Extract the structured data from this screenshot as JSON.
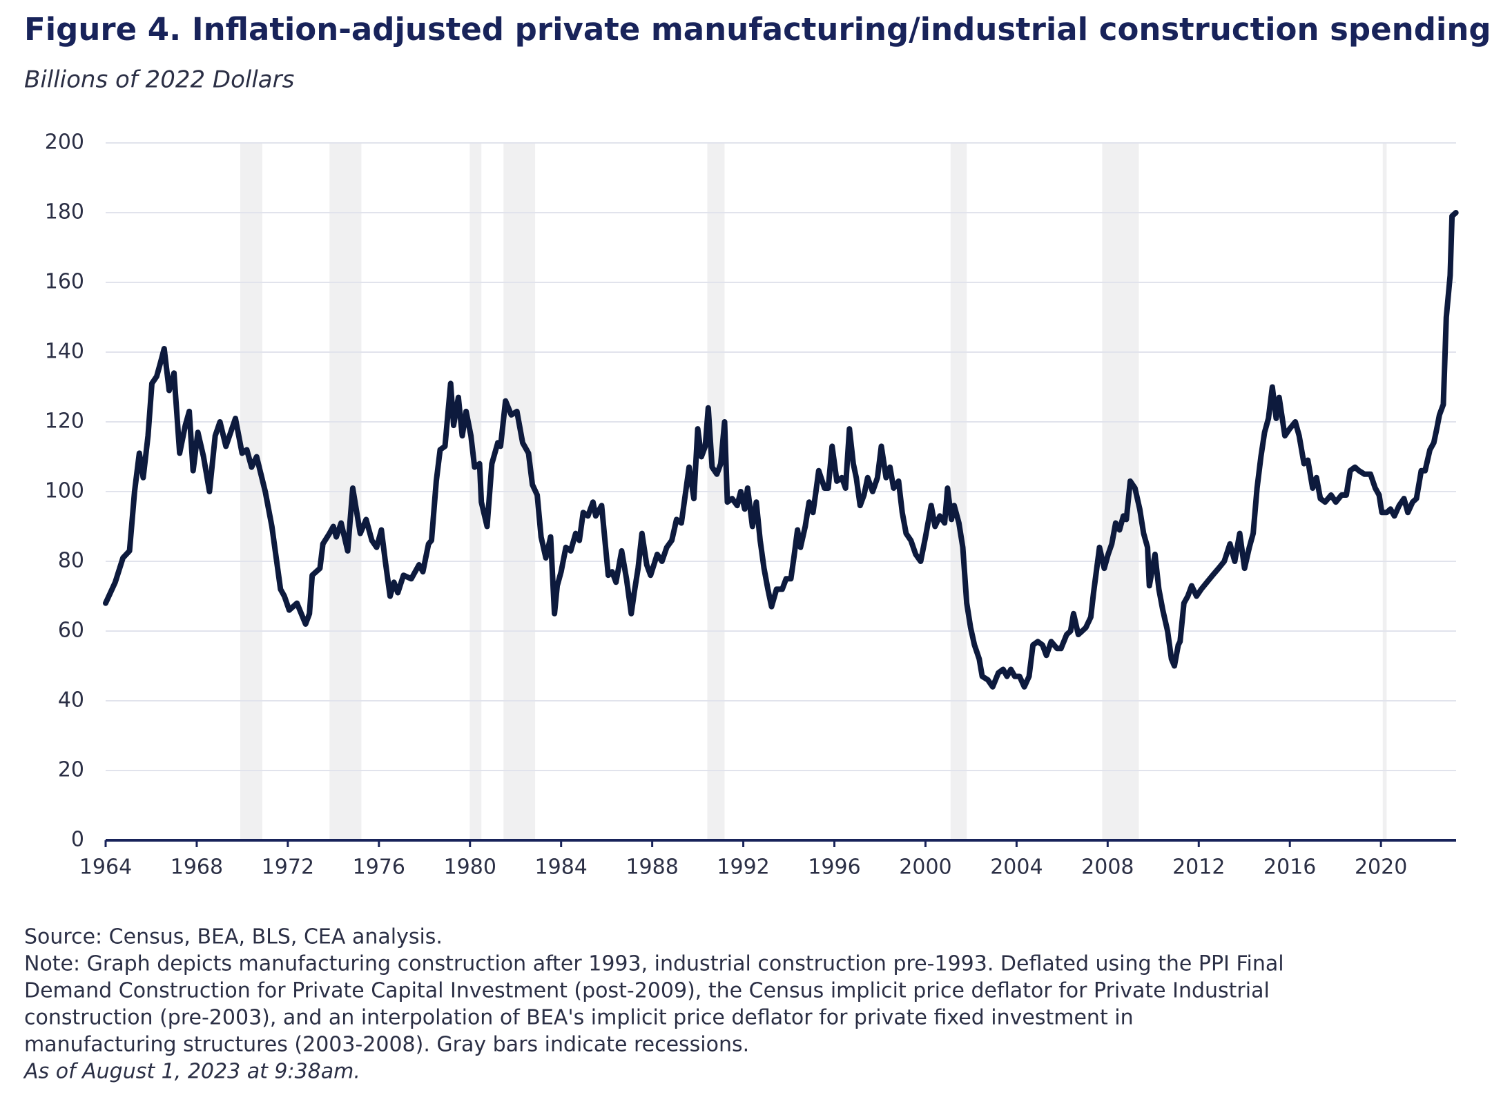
{
  "chart_data": {
    "type": "line",
    "title": "Figure 4. Inflation-adjusted private manufacturing/industrial construction spending",
    "subtitle": "Billions of 2022 Dollars",
    "x": [
      1964.0,
      1964.42,
      1964.76,
      1965.05,
      1965.27,
      1965.48,
      1965.65,
      1965.86,
      1966.03,
      1966.24,
      1966.41,
      1966.57,
      1966.79,
      1967.0,
      1967.25,
      1967.5,
      1967.67,
      1967.84,
      1968.05,
      1968.3,
      1968.56,
      1968.81,
      1969.02,
      1969.28,
      1969.7,
      1969.99,
      1970.2,
      1970.41,
      1970.63,
      1971.01,
      1971.3,
      1971.68,
      1971.85,
      1972.06,
      1972.4,
      1972.78,
      1972.95,
      1973.07,
      1973.41,
      1973.54,
      1973.83,
      1974.0,
      1974.13,
      1974.34,
      1974.63,
      1974.85,
      1975.18,
      1975.44,
      1975.69,
      1975.9,
      1976.11,
      1976.28,
      1976.49,
      1976.66,
      1976.83,
      1977.08,
      1977.42,
      1977.76,
      1977.93,
      1978.18,
      1978.31,
      1978.52,
      1978.69,
      1978.9,
      1979.15,
      1979.28,
      1979.49,
      1979.66,
      1979.83,
      1980.04,
      1980.2,
      1980.42,
      1980.5,
      1980.75,
      1980.96,
      1981.22,
      1981.34,
      1981.56,
      1981.81,
      1982.06,
      1982.31,
      1982.57,
      1982.74,
      1982.95,
      1983.12,
      1983.33,
      1983.54,
      1983.71,
      1983.83,
      1984.0,
      1984.21,
      1984.42,
      1984.64,
      1984.8,
      1984.97,
      1985.18,
      1985.4,
      1985.52,
      1985.78,
      1986.07,
      1986.24,
      1986.41,
      1986.66,
      1986.87,
      1987.08,
      1987.21,
      1987.38,
      1987.55,
      1987.76,
      1987.93,
      1988.22,
      1988.43,
      1988.64,
      1988.86,
      1989.07,
      1989.28,
      1989.45,
      1989.62,
      1989.83,
      1990.0,
      1990.16,
      1990.33,
      1990.46,
      1990.63,
      1990.84,
      1991.01,
      1991.18,
      1991.3,
      1991.51,
      1991.73,
      1991.89,
      1992.06,
      1992.19,
      1992.4,
      1992.57,
      1992.74,
      1992.91,
      1993.08,
      1993.24,
      1993.46,
      1993.71,
      1993.88,
      1994.09,
      1994.22,
      1994.38,
      1994.51,
      1994.72,
      1994.89,
      1995.06,
      1995.19,
      1995.31,
      1995.57,
      1995.73,
      1995.9,
      1996.11,
      1996.33,
      1996.49,
      1996.66,
      1996.83,
      1996.96,
      1997.13,
      1997.3,
      1997.46,
      1997.68,
      1997.89,
      1998.06,
      1998.27,
      1998.44,
      1998.6,
      1998.82,
      1998.98,
      1999.15,
      1999.36,
      1999.57,
      1999.79,
      2000.0,
      2000.25,
      2000.42,
      2000.63,
      2000.84,
      2000.97,
      2001.14,
      2001.26,
      2001.47,
      2001.64,
      2001.81,
      2001.98,
      2002.15,
      2002.36,
      2002.49,
      2002.74,
      2002.95,
      2003.2,
      2003.41,
      2003.58,
      2003.75,
      2003.92,
      2004.13,
      2004.34,
      2004.55,
      2004.72,
      2004.93,
      2005.14,
      2005.31,
      2005.52,
      2005.78,
      2005.95,
      2006.2,
      2006.37,
      2006.5,
      2006.71,
      2006.88,
      2007.04,
      2007.26,
      2007.38,
      2007.64,
      2007.85,
      2008.02,
      2008.18,
      2008.35,
      2008.52,
      2008.69,
      2008.82,
      2008.99,
      2009.2,
      2009.41,
      2009.58,
      2009.75,
      2009.83,
      2010.08,
      2010.25,
      2010.42,
      2010.63,
      2010.8,
      2010.93,
      2011.1,
      2011.18,
      2011.35,
      2011.52,
      2011.69,
      2011.9,
      2012.11,
      2012.36,
      2012.61,
      2012.87,
      2013.12,
      2013.37,
      2013.58,
      2013.8,
      2014.01,
      2014.22,
      2014.39,
      2014.56,
      2014.73,
      2014.89,
      2015.06,
      2015.23,
      2015.4,
      2015.53,
      2015.78,
      2015.99,
      2016.24,
      2016.41,
      2016.62,
      2016.79,
      2017.0,
      2017.17,
      2017.34,
      2017.55,
      2017.81,
      2018.02,
      2018.27,
      2018.48,
      2018.65,
      2018.86,
      2019.03,
      2019.28,
      2019.54,
      2019.75,
      2019.92,
      2020.04,
      2020.25,
      2020.42,
      2020.59,
      2020.8,
      2021.01,
      2021.18,
      2021.39,
      2021.56,
      2021.77,
      2021.94,
      2022.15,
      2022.32,
      2022.45,
      2022.57,
      2022.74,
      2022.87,
      2023.04,
      2023.12,
      2023.29
    ],
    "values": [
      68,
      74,
      81,
      83,
      100,
      111,
      104,
      116,
      131,
      133,
      137,
      141,
      129,
      134,
      111,
      119,
      123,
      106,
      117,
      110,
      100,
      116,
      120,
      113,
      121,
      111,
      112,
      107,
      110,
      100,
      90,
      72,
      70,
      66,
      68,
      62,
      65,
      76,
      78,
      85,
      88,
      90,
      87,
      91,
      83,
      101,
      88,
      92,
      86,
      84,
      89,
      80,
      70,
      74,
      71,
      76,
      75,
      79,
      77,
      85,
      86,
      103,
      112,
      113,
      131,
      119,
      127,
      116,
      123,
      116,
      107,
      108,
      97,
      90,
      108,
      114,
      113,
      126,
      122,
      123,
      114,
      111,
      102,
      99,
      87,
      81,
      87,
      65,
      73,
      77,
      84,
      83,
      88,
      86,
      94,
      93,
      97,
      93,
      96,
      76,
      77,
      74,
      83,
      75,
      65,
      71,
      78,
      88,
      79,
      76,
      82,
      80,
      84,
      86,
      92,
      91,
      99,
      107,
      98,
      118,
      110,
      113,
      124,
      107,
      105,
      108,
      120,
      97,
      98,
      96,
      100,
      95,
      101,
      90,
      97,
      86,
      78,
      72,
      67,
      72,
      72,
      75,
      75,
      81,
      89,
      84,
      90,
      97,
      94,
      100,
      106,
      101,
      101,
      113,
      103,
      104,
      101,
      118,
      108,
      104,
      96,
      99,
      104,
      100,
      104,
      113,
      104,
      107,
      101,
      103,
      94,
      88,
      86,
      82,
      80,
      87,
      96,
      90,
      93,
      91,
      101,
      92,
      96,
      91,
      84,
      68,
      61,
      56,
      52,
      47,
      46,
      44,
      48,
      49,
      47,
      49,
      47,
      47,
      44,
      47,
      56,
      57,
      56,
      53,
      57,
      55,
      55,
      59,
      60,
      65,
      59,
      60,
      61,
      64,
      71,
      84,
      78,
      82,
      85,
      91,
      89,
      93,
      92,
      103,
      101,
      95,
      88,
      84,
      73,
      82,
      72,
      66,
      60,
      52,
      50,
      56,
      57,
      68,
      70,
      73,
      70,
      72,
      74,
      76,
      78,
      80,
      85,
      80,
      88,
      78,
      84,
      88,
      101,
      110,
      117,
      121,
      130,
      121,
      127,
      116,
      118,
      120,
      116,
      108,
      109,
      101,
      104,
      98,
      97,
      99,
      97,
      99,
      99,
      106,
      107,
      106,
      105,
      105,
      101,
      99,
      94,
      94,
      95,
      93,
      96,
      98,
      94,
      97,
      98,
      106,
      106,
      112,
      114,
      118,
      122,
      125,
      150,
      162,
      179,
      180
    ],
    "color": "#0d1a3d",
    "xlim": [
      1964,
      2023.3
    ],
    "xticks": [
      1964,
      1968,
      1972,
      1976,
      1980,
      1984,
      1988,
      1992,
      1996,
      2000,
      2004,
      2008,
      2012,
      2016,
      2020
    ],
    "ylim": [
      0,
      200
    ],
    "yticks": [
      0,
      20,
      40,
      60,
      80,
      100,
      120,
      140,
      160,
      180,
      200
    ],
    "grid": true,
    "recessions": [
      [
        1969.91,
        1970.88
      ],
      [
        1973.83,
        1975.23
      ],
      [
        1979.99,
        1980.5
      ],
      [
        1981.47,
        1982.86
      ],
      [
        1990.42,
        1991.18
      ],
      [
        2001.1,
        2001.81
      ],
      [
        2007.76,
        2009.37
      ],
      [
        2020.08,
        2020.25
      ]
    ],
    "source": "Source: Census, BEA, BLS, CEA analysis.",
    "note": [
      "Note: Graph depicts manufacturing construction after 1993, industrial construction pre-1993. Deflated using the PPI Final",
      "Demand Construction for Private Capital Investment (post-2009), the Census implicit price deflator for Private Industrial",
      "construction (pre-2003), and an interpolation of BEA's implicit price deflator for private fixed investment in",
      "manufacturing structures (2003-2008). Gray bars indicate recessions."
    ],
    "as_of": "As of August 1, 2023 at 9:38am."
  }
}
